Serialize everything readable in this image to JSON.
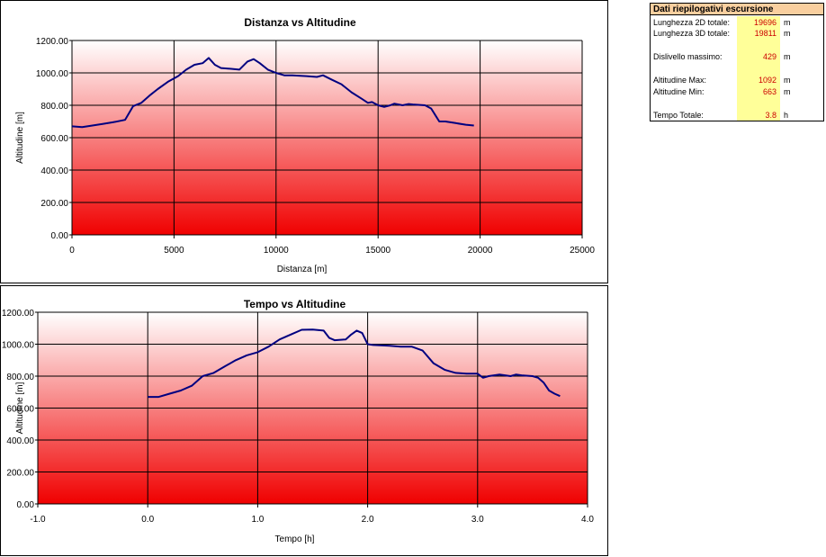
{
  "summary": {
    "header": "Dati riepilogativi escursione",
    "rows": [
      {
        "label": "Lunghezza 2D totale:",
        "value": "19696",
        "unit": "m"
      },
      {
        "label": "Lunghezza 3D totale:",
        "value": "19811",
        "unit": "m"
      },
      {
        "label": "Dislivello massimo:",
        "value": "429",
        "unit": "m"
      },
      {
        "label": "Altitudine Max:",
        "value": "1092",
        "unit": "m"
      },
      {
        "label": "Altitudine Min:",
        "value": "663",
        "unit": "m"
      },
      {
        "label": "Tempo Totale:",
        "value": "3.8",
        "unit": "h"
      }
    ]
  },
  "chart_data": [
    {
      "type": "line",
      "title": "Distanza vs Altitudine",
      "xlabel": "Distanza [m]",
      "ylabel": "Altitudine [m]",
      "xlim": [
        0,
        25000
      ],
      "ylim": [
        0,
        1200
      ],
      "x_ticks": [
        "0",
        "5000",
        "10000",
        "15000",
        "20000",
        "25000"
      ],
      "y_ticks": [
        "0.00",
        "200.00",
        "400.00",
        "600.00",
        "800.00",
        "1000.00",
        "1200.00"
      ],
      "grid": true,
      "line_color": "#000080",
      "x": [
        0,
        500,
        1000,
        1500,
        2000,
        2600,
        3000,
        3400,
        3800,
        4200,
        4700,
        5200,
        5600,
        6000,
        6400,
        6700,
        7000,
        7300,
        7800,
        8200,
        8600,
        8900,
        9200,
        9600,
        10000,
        10400,
        10800,
        11500,
        12000,
        12300,
        12700,
        13200,
        13700,
        14200,
        14500,
        14700,
        15000,
        15300,
        15600,
        15800,
        16200,
        16500,
        16700,
        17300,
        17600,
        17800,
        18000,
        18300,
        18800,
        19300,
        19696
      ],
      "y": [
        670,
        665,
        675,
        685,
        695,
        710,
        795,
        815,
        860,
        900,
        945,
        980,
        1020,
        1050,
        1060,
        1092,
        1050,
        1030,
        1025,
        1020,
        1070,
        1085,
        1060,
        1020,
        1000,
        985,
        985,
        980,
        975,
        985,
        960,
        930,
        880,
        840,
        815,
        820,
        800,
        790,
        800,
        810,
        800,
        808,
        805,
        800,
        780,
        740,
        700,
        700,
        690,
        680,
        675
      ]
    },
    {
      "type": "line",
      "title": "Tempo vs Altitudine",
      "xlabel": "Tempo [h]",
      "ylabel": "Altitudine [m]",
      "xlim": [
        -1.0,
        4.0
      ],
      "ylim": [
        0,
        1200
      ],
      "x_ticks": [
        "-1.0",
        "0.0",
        "1.0",
        "2.0",
        "3.0",
        "4.0"
      ],
      "y_ticks": [
        "0.00",
        "200.00",
        "400.00",
        "600.00",
        "800.00",
        "1000.00",
        "1200.00"
      ],
      "grid": true,
      "line_color": "#000080",
      "x": [
        0.0,
        0.1,
        0.2,
        0.3,
        0.4,
        0.5,
        0.6,
        0.7,
        0.8,
        0.9,
        1.0,
        1.1,
        1.2,
        1.3,
        1.4,
        1.5,
        1.6,
        1.65,
        1.7,
        1.8,
        1.85,
        1.9,
        1.95,
        2.0,
        2.05,
        2.2,
        2.3,
        2.4,
        2.5,
        2.6,
        2.7,
        2.8,
        2.9,
        3.0,
        3.05,
        3.1,
        3.2,
        3.3,
        3.35,
        3.4,
        3.5,
        3.55,
        3.6,
        3.65,
        3.7,
        3.75
      ],
      "y": [
        670,
        670,
        690,
        710,
        740,
        800,
        820,
        860,
        900,
        930,
        950,
        985,
        1030,
        1060,
        1090,
        1092,
        1085,
        1040,
        1025,
        1030,
        1060,
        1085,
        1070,
        1000,
        995,
        990,
        985,
        985,
        960,
        880,
        840,
        820,
        815,
        815,
        790,
        800,
        810,
        800,
        810,
        805,
        800,
        790,
        760,
        710,
        690,
        675
      ]
    }
  ]
}
